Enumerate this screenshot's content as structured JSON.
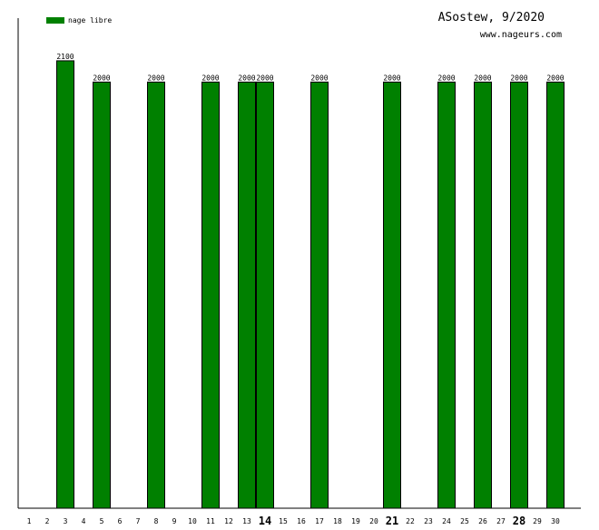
{
  "header": {
    "title": "ASostew, 9/2020",
    "site": "www.nageurs.com"
  },
  "colors": {
    "bar": "#008000",
    "axis": "#000000",
    "background": "#ffffff"
  },
  "chart_data": {
    "type": "bar",
    "title": "ASostew, 9/2020",
    "xlabel": "",
    "ylabel": "",
    "ylim": [
      0,
      2300
    ],
    "grid": false,
    "legend_position": "top-left",
    "categories": [
      "1",
      "2",
      "3",
      "4",
      "5",
      "6",
      "7",
      "8",
      "9",
      "10",
      "11",
      "12",
      "13",
      "14",
      "15",
      "16",
      "17",
      "18",
      "19",
      "20",
      "21",
      "22",
      "23",
      "24",
      "25",
      "26",
      "27",
      "28",
      "29",
      "30"
    ],
    "bold_categories": [
      "14",
      "21",
      "28"
    ],
    "series": [
      {
        "name": "nage libre",
        "color": "#008000",
        "values": [
          0,
          0,
          2100,
          0,
          2000,
          0,
          0,
          2000,
          0,
          0,
          2000,
          0,
          2000,
          2000,
          0,
          0,
          2000,
          0,
          0,
          0,
          2000,
          0,
          0,
          2000,
          0,
          2000,
          0,
          2000,
          0,
          2000
        ]
      }
    ]
  }
}
